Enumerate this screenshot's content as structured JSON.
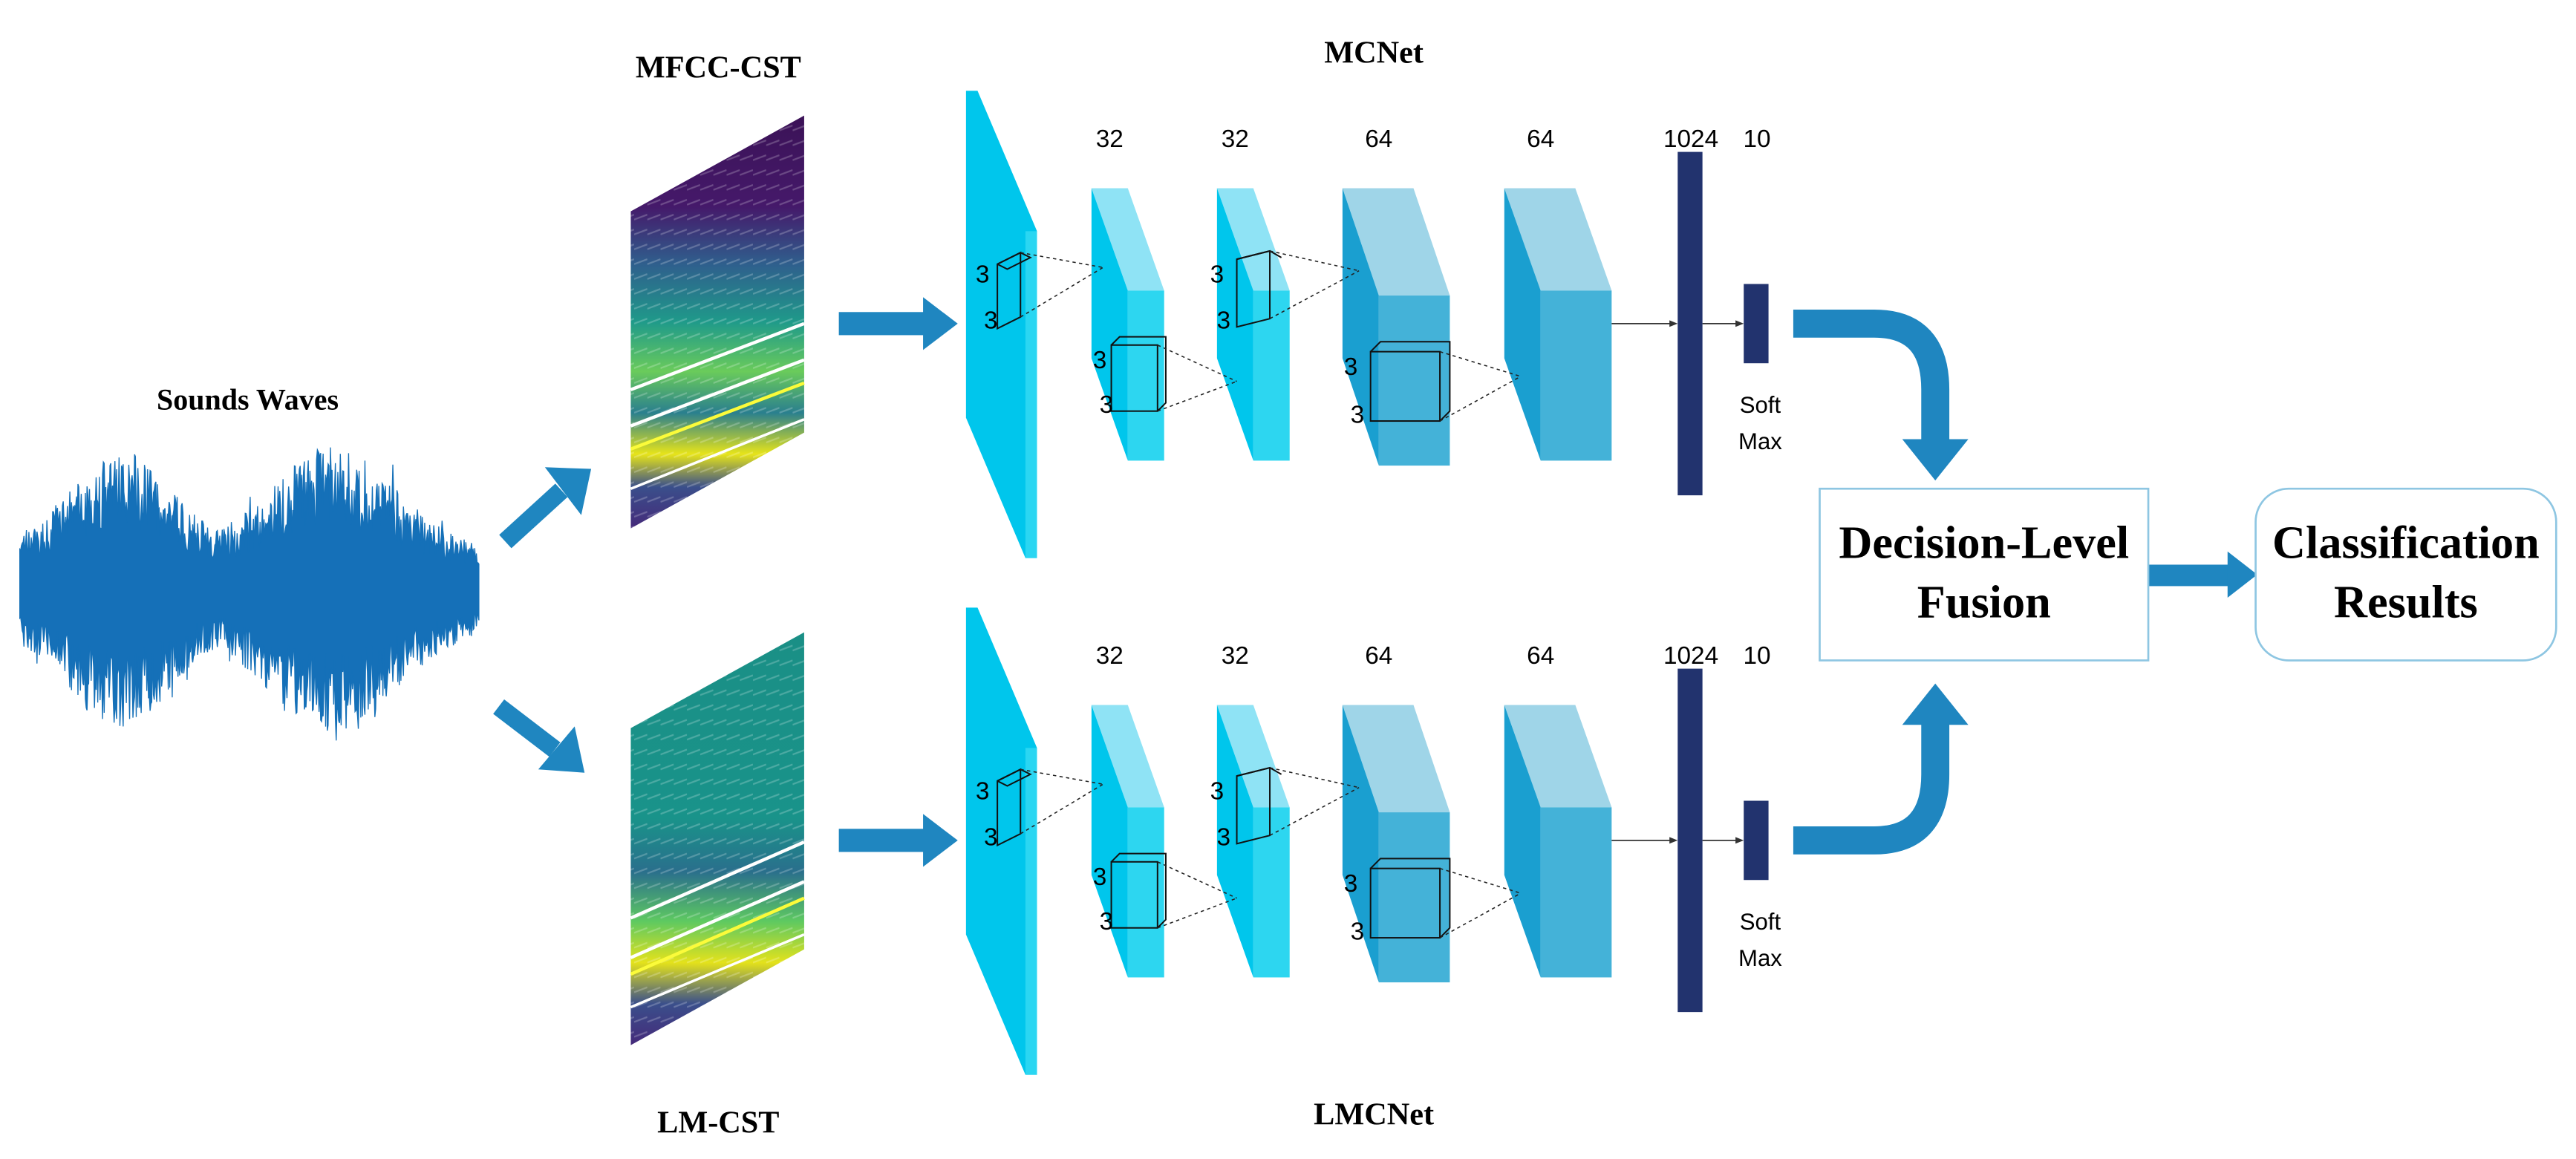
{
  "input": {
    "title": "Sounds Waves"
  },
  "features": {
    "top_label": "MFCC-CST",
    "bottom_label": "LM-CST"
  },
  "networks": {
    "top_name": "MCNet",
    "bottom_name": "LMCNet",
    "layer_sizes": [
      "32",
      "32",
      "64",
      "64",
      "1024",
      "10"
    ],
    "kernel_size": "3",
    "softmax_line1": "Soft",
    "softmax_line2": "Max"
  },
  "fusion": {
    "line1": "Decision-Level",
    "line2": "Fusion"
  },
  "output": {
    "line1": "Classification",
    "line2": "Results"
  },
  "colors": {
    "wave": "#1570b8",
    "arrow": "#1f86c0",
    "conv_front": "#00c6ec",
    "conv_light": "#2dd6f0",
    "conv_pale": "#8fe3f5",
    "conv_mid": "#44b2d8",
    "conv_top": "#9fd5e8",
    "dense": "#22336e",
    "box_border": "#8ec6e2"
  }
}
